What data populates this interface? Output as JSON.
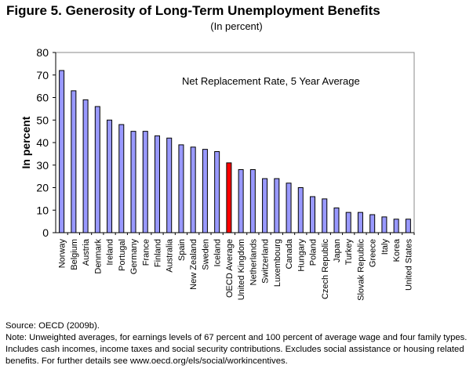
{
  "chart_data": {
    "type": "bar",
    "title": "Figure 5. Generosity of Long-Term Unemployment Benefits",
    "subtitle": "(In percent)",
    "annotation": "Net Replacement Rate, 5 Year Average",
    "xlabel": "",
    "ylabel": "In percent",
    "ylim": [
      0,
      80
    ],
    "yticks": [
      0,
      10,
      20,
      30,
      40,
      50,
      60,
      70,
      80
    ],
    "grid": false,
    "highlight": "OECD Average",
    "colors": {
      "bar": "#9999ff",
      "highlight": "#ff0000"
    },
    "categories": [
      "Norway",
      "Belgium",
      "Austria",
      "Denmark",
      "Ireland",
      "Portugal",
      "Germany",
      "France",
      "Finland",
      "Australia",
      "Spain",
      "New Zealand",
      "Sweden",
      "Iceland",
      "OECD Average",
      "United Kingdom",
      "Netherlands",
      "Switzerland",
      "Luxembourg",
      "Canada",
      "Hungary",
      "Poland",
      "Czech Republic",
      "Japan",
      "Turkey",
      "Slovak Republic",
      "Greece",
      "Italy",
      "Korea",
      "United States"
    ],
    "values": [
      72,
      63,
      59,
      56,
      50,
      48,
      45,
      45,
      43,
      42,
      39,
      38,
      37,
      36,
      31,
      28,
      28,
      24,
      24,
      22,
      20,
      16,
      15,
      11,
      9,
      9,
      8,
      7,
      6,
      6
    ]
  },
  "notes": {
    "source": "Source: OECD (2009b).",
    "note": "Note:  Unweighted averages, for earnings levels of 67 percent and 100 percent of average wage and four family types. Includes cash incomes, income taxes and social security contributions. Excludes social assistance or housing related benefits. For further details see www.oecd.org/els/social/workincentives."
  }
}
